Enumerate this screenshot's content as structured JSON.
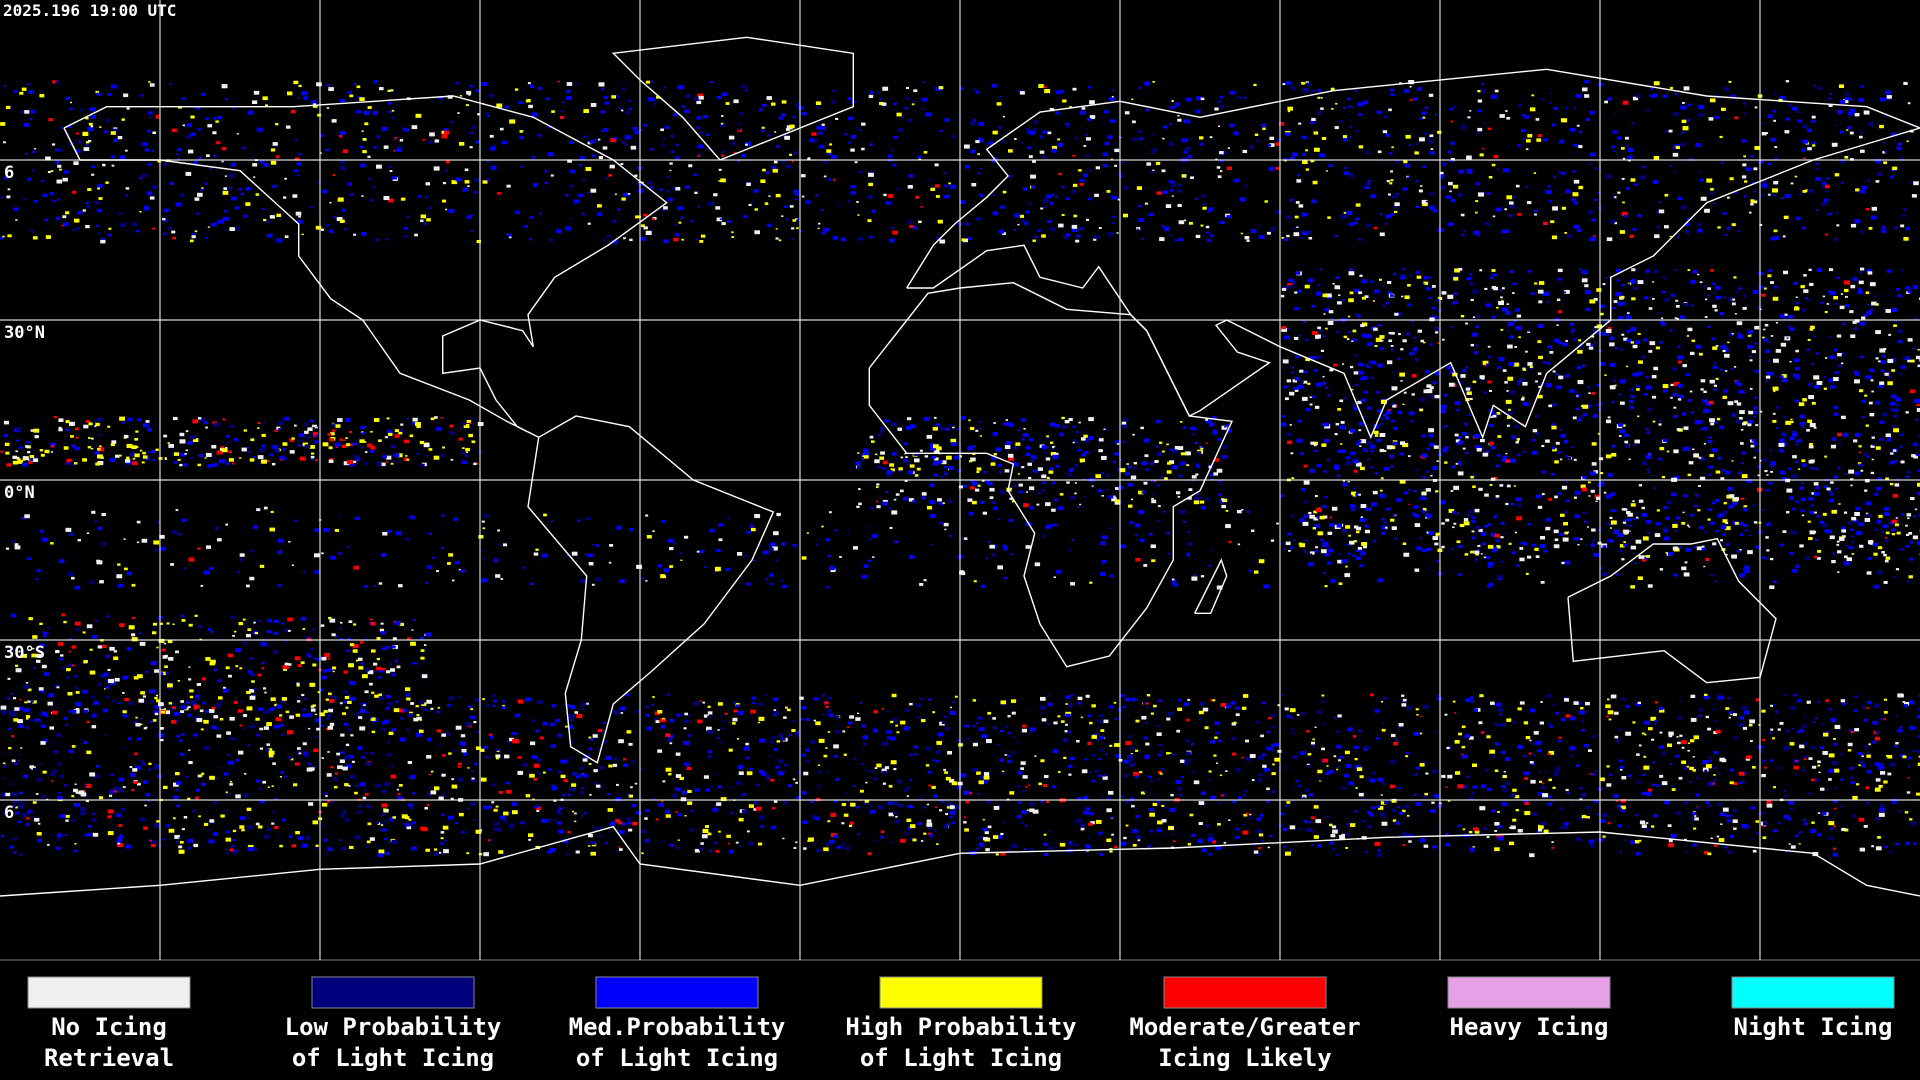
{
  "header": {
    "title": "2025.196 19:00 UTC"
  },
  "lat_labels": [
    "6",
    "30°N",
    "0°N",
    "30°S",
    "6"
  ],
  "legend": [
    {
      "color": "#f0f0f0",
      "lines": [
        "No Icing",
        "Retrieval"
      ]
    },
    {
      "color": "#00007f",
      "lines": [
        "Low Probability",
        "of Light Icing"
      ]
    },
    {
      "color": "#0000ff",
      "lines": [
        "Med.Probability",
        "of Light Icing"
      ]
    },
    {
      "color": "#ffff00",
      "lines": [
        "High Probability",
        "of Light Icing"
      ]
    },
    {
      "color": "#ff0000",
      "lines": [
        "Moderate/Greater",
        "Icing Likely"
      ]
    },
    {
      "color": "#e6a0e6",
      "lines": [
        "Heavy Icing"
      ]
    },
    {
      "color": "#00ffff",
      "lines": [
        "Night Icing"
      ]
    }
  ]
}
